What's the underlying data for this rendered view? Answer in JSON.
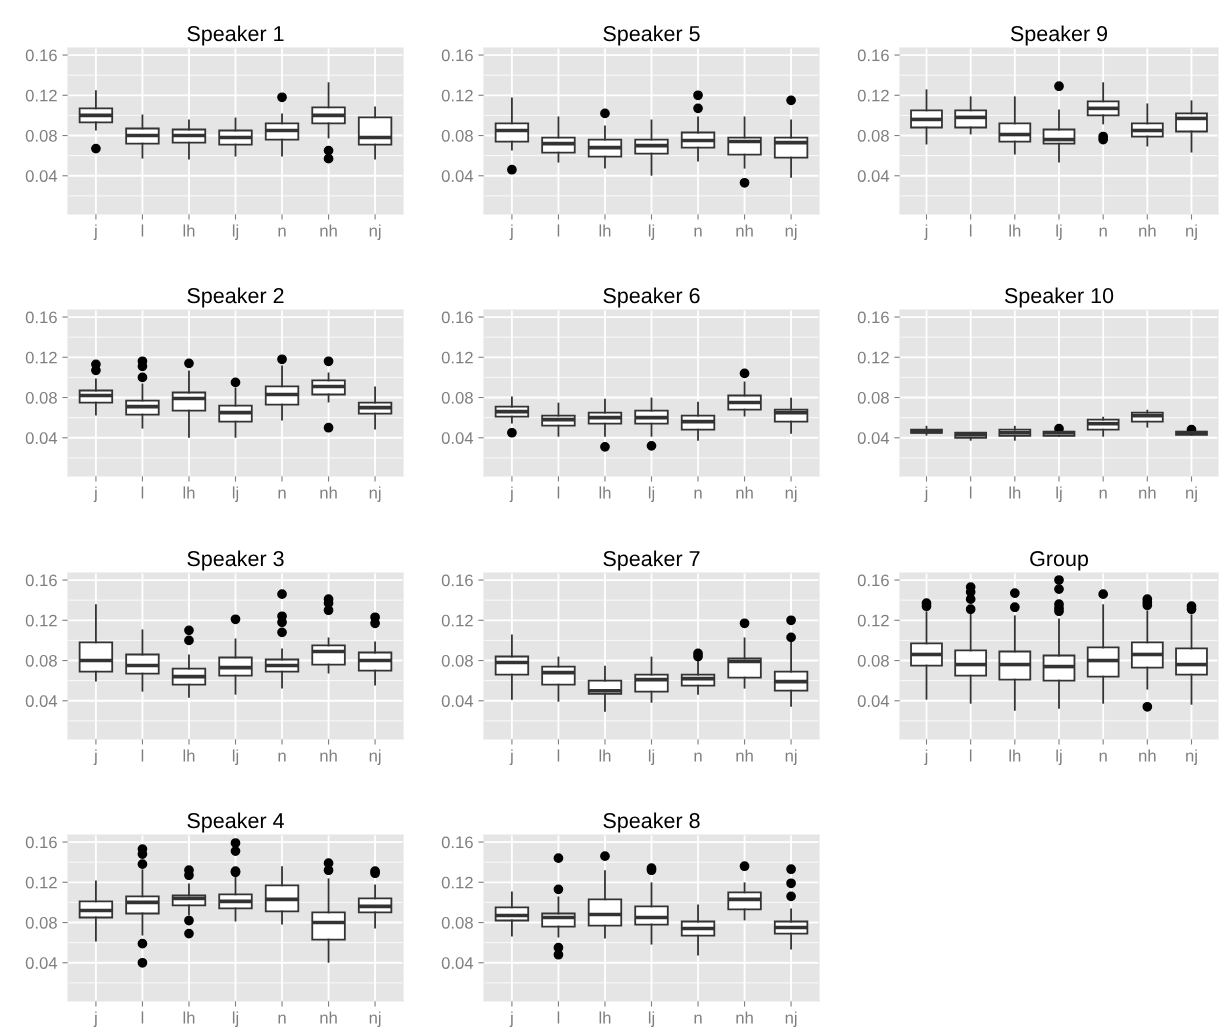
{
  "chart_data": [
    {
      "type": "box",
      "title": "Speaker 1",
      "categories": [
        "j",
        "l",
        "lh",
        "lj",
        "n",
        "nh",
        "nj"
      ],
      "ylim": [
        0.002,
        0.167
      ],
      "yticks": [
        0.04,
        0.08,
        0.12,
        0.16
      ],
      "grid": true,
      "boxes": [
        {
          "low": 0.086,
          "q1": 0.093,
          "median": 0.1,
          "q3": 0.107,
          "high": 0.124,
          "outliers": [
            0.067
          ]
        },
        {
          "low": 0.058,
          "q1": 0.072,
          "median": 0.08,
          "q3": 0.087,
          "high": 0.1
        },
        {
          "low": 0.057,
          "q1": 0.073,
          "median": 0.08,
          "q3": 0.086,
          "high": 0.095
        },
        {
          "low": 0.06,
          "q1": 0.071,
          "median": 0.078,
          "q3": 0.085,
          "high": 0.097
        },
        {
          "low": 0.06,
          "q1": 0.076,
          "median": 0.085,
          "q3": 0.092,
          "high": 0.101,
          "outliers": [
            0.118
          ]
        },
        {
          "low": 0.078,
          "q1": 0.092,
          "median": 0.1,
          "q3": 0.108,
          "high": 0.132,
          "outliers": [
            0.065,
            0.057
          ]
        },
        {
          "low": 0.057,
          "q1": 0.071,
          "median": 0.078,
          "q3": 0.098,
          "high": 0.108
        }
      ]
    },
    {
      "type": "box",
      "title": "Speaker 5",
      "categories": [
        "j",
        "l",
        "lh",
        "lj",
        "n",
        "nh",
        "nj"
      ],
      "ylim": [
        0.002,
        0.167
      ],
      "yticks": [
        0.04,
        0.08,
        0.12,
        0.16
      ],
      "grid": true,
      "boxes": [
        {
          "low": 0.066,
          "q1": 0.074,
          "median": 0.085,
          "q3": 0.092,
          "high": 0.117,
          "outliers": [
            0.046
          ]
        },
        {
          "low": 0.054,
          "q1": 0.063,
          "median": 0.072,
          "q3": 0.078,
          "high": 0.098
        },
        {
          "low": 0.048,
          "q1": 0.059,
          "median": 0.068,
          "q3": 0.076,
          "high": 0.089,
          "outliers": [
            0.102
          ]
        },
        {
          "low": 0.041,
          "q1": 0.062,
          "median": 0.07,
          "q3": 0.076,
          "high": 0.095
        },
        {
          "low": 0.055,
          "q1": 0.068,
          "median": 0.075,
          "q3": 0.083,
          "high": 0.098,
          "outliers": [
            0.12,
            0.107
          ]
        },
        {
          "low": 0.048,
          "q1": 0.061,
          "median": 0.074,
          "q3": 0.078,
          "high": 0.098,
          "outliers": [
            0.033
          ]
        },
        {
          "low": 0.039,
          "q1": 0.058,
          "median": 0.073,
          "q3": 0.078,
          "high": 0.095,
          "outliers": [
            0.115
          ]
        }
      ]
    },
    {
      "type": "box",
      "title": "Speaker 9",
      "categories": [
        "j",
        "l",
        "lh",
        "lj",
        "n",
        "nh",
        "nj"
      ],
      "ylim": [
        0.002,
        0.167
      ],
      "yticks": [
        0.04,
        0.08,
        0.12,
        0.16
      ],
      "grid": true,
      "boxes": [
        {
          "low": 0.072,
          "q1": 0.088,
          "median": 0.096,
          "q3": 0.105,
          "high": 0.125
        },
        {
          "low": 0.082,
          "q1": 0.088,
          "median": 0.098,
          "q3": 0.105,
          "high": 0.118
        },
        {
          "low": 0.062,
          "q1": 0.074,
          "median": 0.081,
          "q3": 0.092,
          "high": 0.118
        },
        {
          "low": 0.054,
          "q1": 0.072,
          "median": 0.076,
          "q3": 0.086,
          "high": 0.105,
          "outliers": [
            0.129
          ]
        },
        {
          "low": 0.092,
          "q1": 0.1,
          "median": 0.107,
          "q3": 0.114,
          "high": 0.132,
          "outliers": [
            0.079,
            0.076
          ]
        },
        {
          "low": 0.07,
          "q1": 0.079,
          "median": 0.085,
          "q3": 0.092,
          "high": 0.111
        },
        {
          "low": 0.064,
          "q1": 0.084,
          "median": 0.097,
          "q3": 0.102,
          "high": 0.114
        }
      ]
    },
    {
      "type": "box",
      "title": "Speaker 2",
      "categories": [
        "j",
        "l",
        "lh",
        "lj",
        "n",
        "nh",
        "nj"
      ],
      "ylim": [
        0.002,
        0.167
      ],
      "yticks": [
        0.04,
        0.08,
        0.12,
        0.16
      ],
      "grid": true,
      "boxes": [
        {
          "low": 0.063,
          "q1": 0.075,
          "median": 0.082,
          "q3": 0.087,
          "high": 0.098,
          "outliers": [
            0.113,
            0.107
          ]
        },
        {
          "low": 0.05,
          "q1": 0.063,
          "median": 0.071,
          "q3": 0.077,
          "high": 0.093,
          "outliers": [
            0.116,
            0.111,
            0.1
          ]
        },
        {
          "low": 0.041,
          "q1": 0.067,
          "median": 0.079,
          "q3": 0.085,
          "high": 0.106,
          "outliers": [
            0.114
          ]
        },
        {
          "low": 0.041,
          "q1": 0.056,
          "median": 0.065,
          "q3": 0.072,
          "high": 0.089,
          "outliers": [
            0.095
          ]
        },
        {
          "low": 0.058,
          "q1": 0.073,
          "median": 0.083,
          "q3": 0.091,
          "high": 0.111,
          "outliers": [
            0.118
          ]
        },
        {
          "low": 0.076,
          "q1": 0.083,
          "median": 0.091,
          "q3": 0.097,
          "high": 0.104,
          "outliers": [
            0.116,
            0.05
          ]
        },
        {
          "low": 0.049,
          "q1": 0.064,
          "median": 0.07,
          "q3": 0.075,
          "high": 0.09
        }
      ]
    },
    {
      "type": "box",
      "title": "Speaker 6",
      "categories": [
        "j",
        "l",
        "lh",
        "lj",
        "n",
        "nh",
        "nj"
      ],
      "ylim": [
        0.002,
        0.167
      ],
      "yticks": [
        0.04,
        0.08,
        0.12,
        0.16
      ],
      "grid": true,
      "boxes": [
        {
          "low": 0.055,
          "q1": 0.061,
          "median": 0.066,
          "q3": 0.071,
          "high": 0.08,
          "outliers": [
            0.045
          ]
        },
        {
          "low": 0.042,
          "q1": 0.052,
          "median": 0.058,
          "q3": 0.062,
          "high": 0.074
        },
        {
          "low": 0.042,
          "q1": 0.054,
          "median": 0.06,
          "q3": 0.065,
          "high": 0.078,
          "outliers": [
            0.031
          ]
        },
        {
          "low": 0.042,
          "q1": 0.054,
          "median": 0.06,
          "q3": 0.067,
          "high": 0.079,
          "outliers": [
            0.032
          ]
        },
        {
          "low": 0.038,
          "q1": 0.048,
          "median": 0.056,
          "q3": 0.062,
          "high": 0.075
        },
        {
          "low": 0.062,
          "q1": 0.068,
          "median": 0.075,
          "q3": 0.082,
          "high": 0.095,
          "outliers": [
            0.104
          ]
        },
        {
          "low": 0.045,
          "q1": 0.056,
          "median": 0.065,
          "q3": 0.068,
          "high": 0.079
        }
      ]
    },
    {
      "type": "box",
      "title": "Speaker 10",
      "categories": [
        "j",
        "l",
        "lh",
        "lj",
        "n",
        "nh",
        "nj"
      ],
      "ylim": [
        0.002,
        0.167
      ],
      "yticks": [
        0.04,
        0.08,
        0.12,
        0.16
      ],
      "grid": true,
      "boxes": [
        {
          "low": 0.043,
          "q1": 0.045,
          "median": 0.046,
          "q3": 0.048,
          "high": 0.051
        },
        {
          "low": 0.038,
          "q1": 0.04,
          "median": 0.043,
          "q3": 0.045,
          "high": 0.045
        },
        {
          "low": 0.038,
          "q1": 0.042,
          "median": 0.045,
          "q3": 0.048,
          "high": 0.051
        },
        {
          "low": 0.042,
          "q1": 0.042,
          "median": 0.045,
          "q3": 0.046,
          "high": 0.046,
          "outliers": [
            0.049
          ]
        },
        {
          "low": 0.042,
          "q1": 0.048,
          "median": 0.054,
          "q3": 0.058,
          "high": 0.06
        },
        {
          "low": 0.051,
          "q1": 0.056,
          "median": 0.062,
          "q3": 0.065,
          "high": 0.067
        },
        {
          "low": 0.043,
          "q1": 0.043,
          "median": 0.045,
          "q3": 0.046,
          "high": 0.046,
          "outliers": [
            0.048
          ]
        }
      ]
    },
    {
      "type": "box",
      "title": "Speaker 3",
      "categories": [
        "j",
        "l",
        "lh",
        "lj",
        "n",
        "nh",
        "nj"
      ],
      "ylim": [
        0.002,
        0.167
      ],
      "yticks": [
        0.04,
        0.08,
        0.12,
        0.16
      ],
      "grid": true,
      "boxes": [
        {
          "low": 0.06,
          "q1": 0.069,
          "median": 0.08,
          "q3": 0.098,
          "high": 0.135
        },
        {
          "low": 0.05,
          "q1": 0.067,
          "median": 0.075,
          "q3": 0.086,
          "high": 0.11
        },
        {
          "low": 0.044,
          "q1": 0.056,
          "median": 0.064,
          "q3": 0.072,
          "high": 0.085,
          "outliers": [
            0.11,
            0.1
          ]
        },
        {
          "low": 0.047,
          "q1": 0.065,
          "median": 0.073,
          "q3": 0.083,
          "high": 0.101,
          "outliers": [
            0.121
          ]
        },
        {
          "low": 0.053,
          "q1": 0.069,
          "median": 0.075,
          "q3": 0.081,
          "high": 0.091,
          "outliers": [
            0.146,
            0.124,
            0.118,
            0.108
          ]
        },
        {
          "low": 0.068,
          "q1": 0.076,
          "median": 0.089,
          "q3": 0.095,
          "high": 0.102,
          "outliers": [
            0.141,
            0.137,
            0.13
          ]
        },
        {
          "low": 0.056,
          "q1": 0.07,
          "median": 0.08,
          "q3": 0.088,
          "high": 0.098,
          "outliers": [
            0.123,
            0.117
          ]
        }
      ]
    },
    {
      "type": "box",
      "title": "Speaker 7",
      "categories": [
        "j",
        "l",
        "lh",
        "lj",
        "n",
        "nh",
        "nj"
      ],
      "ylim": [
        0.002,
        0.167
      ],
      "yticks": [
        0.04,
        0.08,
        0.12,
        0.16
      ],
      "grid": true,
      "boxes": [
        {
          "low": 0.042,
          "q1": 0.066,
          "median": 0.078,
          "q3": 0.084,
          "high": 0.105
        },
        {
          "low": 0.04,
          "q1": 0.056,
          "median": 0.068,
          "q3": 0.074,
          "high": 0.083
        },
        {
          "low": 0.03,
          "q1": 0.047,
          "median": 0.05,
          "q3": 0.06,
          "high": 0.074
        },
        {
          "low": 0.039,
          "q1": 0.049,
          "median": 0.061,
          "q3": 0.066,
          "high": 0.083
        },
        {
          "low": 0.047,
          "q1": 0.055,
          "median": 0.062,
          "q3": 0.066,
          "high": 0.08,
          "outliers": [
            0.087,
            0.084
          ]
        },
        {
          "low": 0.053,
          "q1": 0.063,
          "median": 0.079,
          "q3": 0.082,
          "high": 0.102,
          "outliers": [
            0.117
          ]
        },
        {
          "low": 0.035,
          "q1": 0.05,
          "median": 0.059,
          "q3": 0.069,
          "high": 0.098,
          "outliers": [
            0.12,
            0.103
          ]
        }
      ]
    },
    {
      "type": "box",
      "title": "Group",
      "categories": [
        "j",
        "l",
        "lh",
        "lj",
        "n",
        "nh",
        "nj"
      ],
      "ylim": [
        0.002,
        0.167
      ],
      "yticks": [
        0.04,
        0.08,
        0.12,
        0.16
      ],
      "grid": true,
      "boxes": [
        {
          "low": 0.042,
          "q1": 0.075,
          "median": 0.086,
          "q3": 0.097,
          "high": 0.128,
          "outliers": [
            0.137,
            0.134
          ]
        },
        {
          "low": 0.038,
          "q1": 0.065,
          "median": 0.076,
          "q3": 0.09,
          "high": 0.126,
          "outliers": [
            0.153,
            0.148,
            0.141,
            0.131
          ]
        },
        {
          "low": 0.031,
          "q1": 0.061,
          "median": 0.076,
          "q3": 0.089,
          "high": 0.124,
          "outliers": [
            0.147,
            0.133
          ]
        },
        {
          "low": 0.033,
          "q1": 0.06,
          "median": 0.074,
          "q3": 0.085,
          "high": 0.121,
          "outliers": [
            0.16,
            0.151,
            0.136,
            0.132,
            0.129
          ]
        },
        {
          "low": 0.038,
          "q1": 0.064,
          "median": 0.08,
          "q3": 0.093,
          "high": 0.135,
          "outliers": [
            0.146
          ]
        },
        {
          "low": 0.052,
          "q1": 0.073,
          "median": 0.086,
          "q3": 0.098,
          "high": 0.129,
          "outliers": [
            0.141,
            0.138,
            0.135,
            0.034
          ]
        },
        {
          "low": 0.037,
          "q1": 0.066,
          "median": 0.076,
          "q3": 0.092,
          "high": 0.125,
          "outliers": [
            0.134,
            0.131
          ]
        }
      ]
    },
    {
      "type": "box",
      "title": "Speaker 4",
      "categories": [
        "j",
        "l",
        "lh",
        "lj",
        "n",
        "nh",
        "nj"
      ],
      "ylim": [
        0.002,
        0.167
      ],
      "yticks": [
        0.04,
        0.08,
        0.12,
        0.16
      ],
      "grid": true,
      "boxes": [
        {
          "low": 0.062,
          "q1": 0.085,
          "median": 0.092,
          "q3": 0.101,
          "high": 0.121
        },
        {
          "low": 0.068,
          "q1": 0.089,
          "median": 0.1,
          "q3": 0.106,
          "high": 0.132,
          "outliers": [
            0.153,
            0.148,
            0.138,
            0.059,
            0.04
          ]
        },
        {
          "low": 0.088,
          "q1": 0.097,
          "median": 0.104,
          "q3": 0.107,
          "high": 0.118,
          "outliers": [
            0.132,
            0.127,
            0.082,
            0.069
          ]
        },
        {
          "low": 0.082,
          "q1": 0.094,
          "median": 0.101,
          "q3": 0.108,
          "high": 0.127,
          "outliers": [
            0.159,
            0.151,
            0.131,
            0.13
          ]
        },
        {
          "low": 0.079,
          "q1": 0.091,
          "median": 0.103,
          "q3": 0.117,
          "high": 0.135
        },
        {
          "low": 0.041,
          "q1": 0.063,
          "median": 0.08,
          "q3": 0.09,
          "high": 0.123,
          "outliers": [
            0.139,
            0.132
          ]
        },
        {
          "low": 0.075,
          "q1": 0.09,
          "median": 0.096,
          "q3": 0.104,
          "high": 0.117,
          "outliers": [
            0.131,
            0.129
          ]
        }
      ]
    },
    {
      "type": "box",
      "title": "Speaker 8",
      "categories": [
        "j",
        "l",
        "lh",
        "lj",
        "n",
        "nh",
        "nj"
      ],
      "ylim": [
        0.002,
        0.167
      ],
      "yticks": [
        0.04,
        0.08,
        0.12,
        0.16
      ],
      "grid": true,
      "boxes": [
        {
          "low": 0.067,
          "q1": 0.082,
          "median": 0.087,
          "q3": 0.095,
          "high": 0.11
        },
        {
          "low": 0.066,
          "q1": 0.076,
          "median": 0.085,
          "q3": 0.089,
          "high": 0.105,
          "outliers": [
            0.144,
            0.113,
            0.055,
            0.048
          ]
        },
        {
          "low": 0.065,
          "q1": 0.077,
          "median": 0.088,
          "q3": 0.103,
          "high": 0.131,
          "outliers": [
            0.146
          ]
        },
        {
          "low": 0.059,
          "q1": 0.078,
          "median": 0.085,
          "q3": 0.096,
          "high": 0.119,
          "outliers": [
            0.134,
            0.132
          ]
        },
        {
          "low": 0.048,
          "q1": 0.067,
          "median": 0.074,
          "q3": 0.081,
          "high": 0.097
        },
        {
          "low": 0.083,
          "q1": 0.093,
          "median": 0.103,
          "q3": 0.11,
          "high": 0.119,
          "outliers": [
            0.136
          ]
        },
        {
          "low": 0.054,
          "q1": 0.069,
          "median": 0.075,
          "q3": 0.081,
          "high": 0.093,
          "outliers": [
            0.133,
            0.119,
            0.106
          ]
        }
      ]
    }
  ]
}
